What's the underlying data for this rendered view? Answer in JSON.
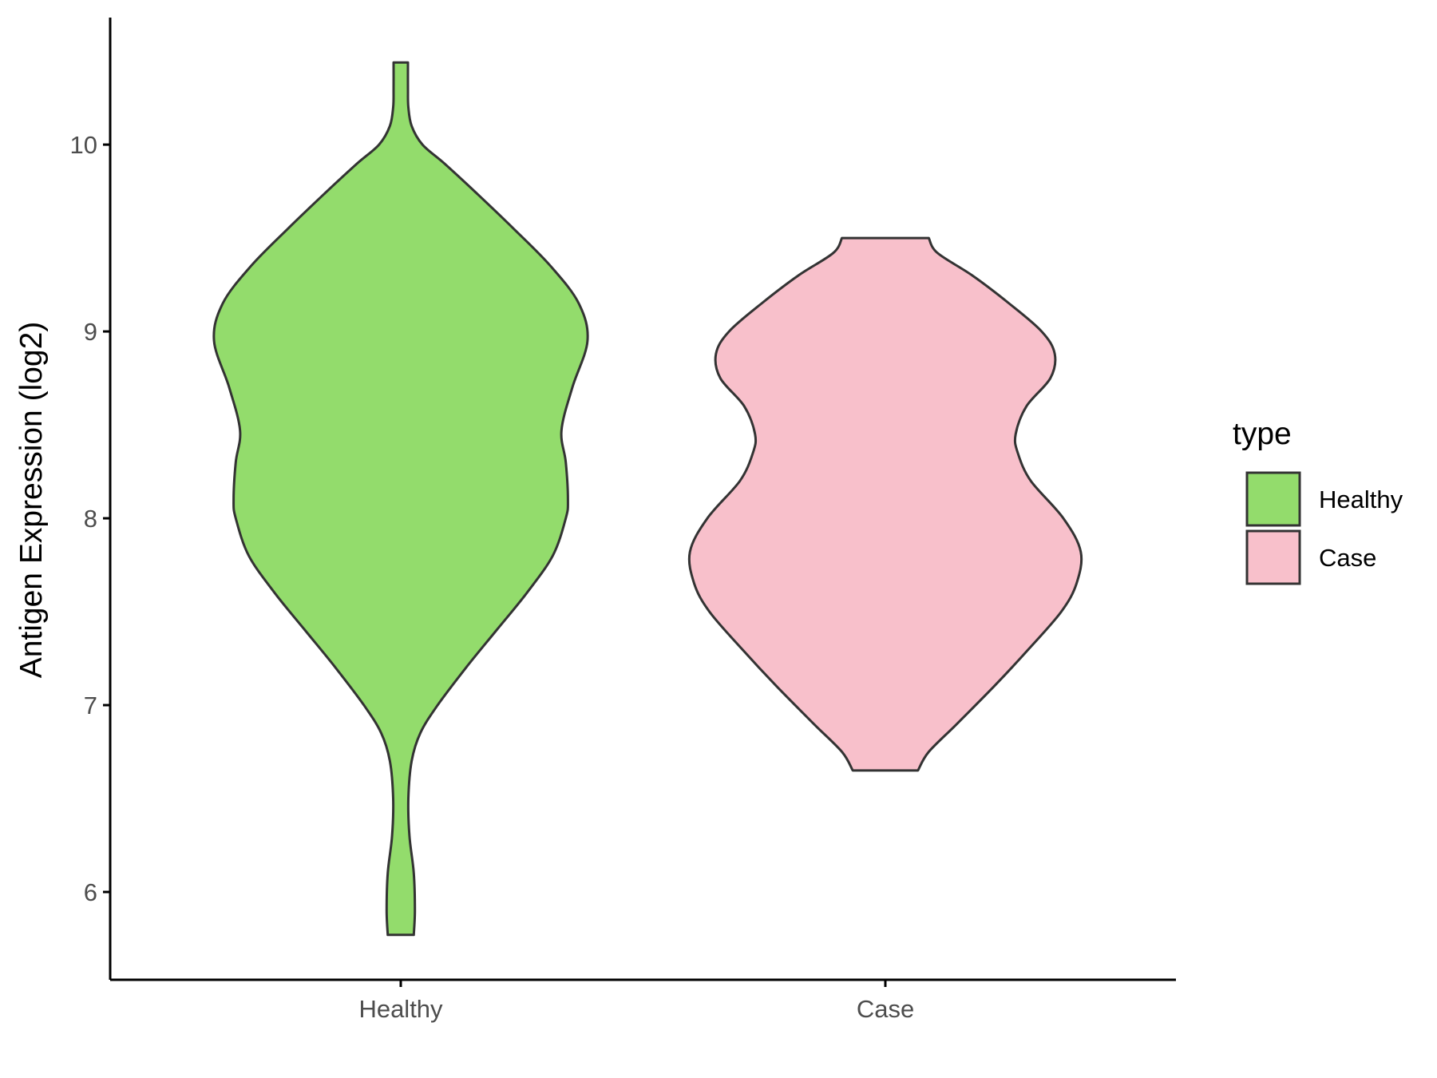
{
  "chart_data": {
    "type": "violin",
    "title": "",
    "xlabel": "",
    "ylabel": "Antigen Expression (log2)",
    "categories": [
      "Healthy",
      "Case"
    ],
    "ylim": [
      5.53,
      10.68
    ],
    "yticks": [
      6,
      7,
      8,
      9,
      10
    ],
    "grid": false,
    "legend": {
      "title": "type",
      "placement": "right",
      "entries": [
        {
          "label": "Healthy",
          "color": "#93dc6c"
        },
        {
          "label": "Case",
          "color": "#f8c0cb"
        }
      ]
    },
    "series": [
      {
        "category": "Healthy",
        "color": "#93dc6c",
        "min": 5.77,
        "max": 10.44,
        "density_profile": [
          [
            5.77,
            0.06
          ],
          [
            5.9,
            0.065
          ],
          [
            6.1,
            0.06
          ],
          [
            6.3,
            0.04
          ],
          [
            6.5,
            0.035
          ],
          [
            6.7,
            0.05
          ],
          [
            6.85,
            0.09
          ],
          [
            7.0,
            0.17
          ],
          [
            7.2,
            0.3
          ],
          [
            7.4,
            0.44
          ],
          [
            7.6,
            0.58
          ],
          [
            7.8,
            0.7
          ],
          [
            8.0,
            0.76
          ],
          [
            8.1,
            0.77
          ],
          [
            8.3,
            0.76
          ],
          [
            8.47,
            0.74
          ],
          [
            8.7,
            0.79
          ],
          [
            8.95,
            0.86
          ],
          [
            9.15,
            0.82
          ],
          [
            9.35,
            0.69
          ],
          [
            9.55,
            0.52
          ],
          [
            9.75,
            0.34
          ],
          [
            9.9,
            0.2
          ],
          [
            10.0,
            0.1
          ],
          [
            10.1,
            0.05
          ],
          [
            10.2,
            0.035
          ],
          [
            10.3,
            0.033
          ],
          [
            10.44,
            0.033
          ]
        ]
      },
      {
        "category": "Case",
        "color": "#f8c0cb",
        "min": 6.65,
        "max": 9.5,
        "density_profile": [
          [
            6.65,
            0.15
          ],
          [
            6.75,
            0.2
          ],
          [
            6.9,
            0.33
          ],
          [
            7.1,
            0.5
          ],
          [
            7.3,
            0.66
          ],
          [
            7.5,
            0.81
          ],
          [
            7.65,
            0.88
          ],
          [
            7.82,
            0.9
          ],
          [
            8.0,
            0.82
          ],
          [
            8.2,
            0.67
          ],
          [
            8.35,
            0.61
          ],
          [
            8.45,
            0.6
          ],
          [
            8.6,
            0.65
          ],
          [
            8.75,
            0.76
          ],
          [
            8.88,
            0.78
          ],
          [
            9.0,
            0.72
          ],
          [
            9.15,
            0.57
          ],
          [
            9.3,
            0.4
          ],
          [
            9.42,
            0.24
          ],
          [
            9.5,
            0.2
          ]
        ]
      }
    ]
  }
}
